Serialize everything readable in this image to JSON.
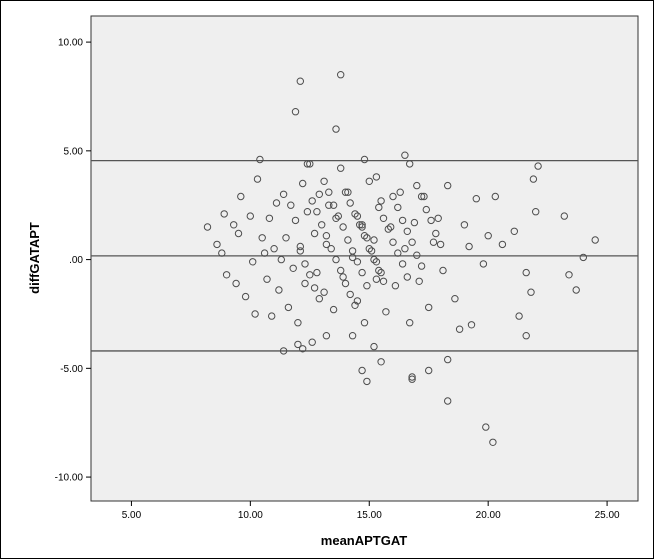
{
  "chart_data": {
    "type": "scatter",
    "xlabel": "meanAPTGAT",
    "ylabel": "diffGATAPT",
    "xlim": [
      3.3,
      26.3
    ],
    "ylim": [
      -11.1,
      11.2
    ],
    "x_ticks": [
      "5.00",
      "10.00",
      "15.00",
      "20.00",
      "25.00"
    ],
    "y_ticks": [
      "10.00",
      "5.00",
      ".00",
      "-5.00",
      "-10.00"
    ],
    "reference_lines": [
      4.55,
      0.17,
      -4.2
    ],
    "grid": false,
    "legend": "none",
    "colors": {
      "plot_background": "#efefef",
      "marker_edge": "#4d4d4d",
      "line": "#555555"
    },
    "points": [
      [
        8.2,
        1.5
      ],
      [
        8.6,
        0.7
      ],
      [
        8.8,
        0.3
      ],
      [
        8.9,
        2.1
      ],
      [
        9.0,
        -0.7
      ],
      [
        9.3,
        1.6
      ],
      [
        9.5,
        1.2
      ],
      [
        9.6,
        2.9
      ],
      [
        9.8,
        -1.7
      ],
      [
        10.0,
        2.0
      ],
      [
        10.1,
        -0.1
      ],
      [
        10.3,
        3.7
      ],
      [
        10.4,
        4.6
      ],
      [
        10.5,
        1.0
      ],
      [
        10.6,
        0.3
      ],
      [
        10.7,
        -0.9
      ],
      [
        10.8,
        1.9
      ],
      [
        10.9,
        -2.6
      ],
      [
        11.1,
        2.6
      ],
      [
        11.2,
        -1.4
      ],
      [
        11.3,
        0.0
      ],
      [
        11.4,
        3.0
      ],
      [
        11.5,
        1.0
      ],
      [
        11.6,
        -2.2
      ],
      [
        11.7,
        2.5
      ],
      [
        11.8,
        -0.4
      ],
      [
        11.9,
        1.8
      ],
      [
        12.0,
        -2.9
      ],
      [
        12.1,
        0.6
      ],
      [
        12.2,
        3.5
      ],
      [
        12.3,
        -1.1
      ],
      [
        12.4,
        2.2
      ],
      [
        12.5,
        4.4
      ],
      [
        12.6,
        -3.8
      ],
      [
        12.7,
        1.2
      ],
      [
        12.8,
        -0.6
      ],
      [
        12.9,
        3.0
      ],
      [
        13.1,
        -1.5
      ],
      [
        13.2,
        0.7
      ],
      [
        13.3,
        2.5
      ],
      [
        13.5,
        -2.3
      ],
      [
        13.6,
        1.9
      ],
      [
        13.8,
        4.2
      ],
      [
        13.9,
        -0.8
      ],
      [
        14.1,
        3.1
      ],
      [
        14.3,
        0.1
      ],
      [
        14.5,
        -1.9
      ],
      [
        14.7,
        1.6
      ],
      [
        14.8,
        -2.9
      ],
      [
        15.0,
        3.6
      ],
      [
        15.2,
        0.9
      ],
      [
        15.3,
        -0.9
      ],
      [
        15.5,
        2.7
      ],
      [
        15.7,
        -2.4
      ],
      [
        15.9,
        1.5
      ],
      [
        16.1,
        -1.2
      ],
      [
        16.3,
        3.1
      ],
      [
        16.5,
        0.5
      ],
      [
        16.7,
        -2.9
      ],
      [
        16.9,
        1.7
      ],
      [
        17.1,
        -1.0
      ],
      [
        17.3,
        2.9
      ],
      [
        17.5,
        -2.2
      ],
      [
        17.7,
        0.8
      ],
      [
        17.9,
        1.9
      ],
      [
        18.1,
        -0.5
      ],
      [
        18.3,
        3.4
      ],
      [
        18.6,
        -1.8
      ],
      [
        18.8,
        -3.2
      ],
      [
        19.0,
        1.6
      ],
      [
        19.2,
        0.6
      ],
      [
        19.5,
        2.8
      ],
      [
        19.8,
        -0.2
      ],
      [
        20.0,
        1.1
      ],
      [
        20.3,
        2.9
      ],
      [
        20.6,
        0.7
      ],
      [
        21.1,
        1.3
      ],
      [
        21.3,
        -2.6
      ],
      [
        21.6,
        -0.6
      ],
      [
        21.8,
        -1.5
      ],
      [
        22.0,
        2.2
      ],
      [
        22.1,
        4.3
      ],
      [
        23.2,
        2.0
      ],
      [
        23.4,
        -0.7
      ],
      [
        23.7,
        -1.4
      ],
      [
        24.0,
        0.1
      ],
      [
        24.5,
        0.9
      ],
      [
        9.4,
        -1.1
      ],
      [
        10.2,
        -2.5
      ],
      [
        11.0,
        0.5
      ],
      [
        11.4,
        -4.2
      ],
      [
        11.9,
        6.8
      ],
      [
        12.1,
        8.2
      ],
      [
        12.2,
        -4.1
      ],
      [
        13.8,
        8.5
      ],
      [
        13.6,
        6.0
      ],
      [
        12.4,
        4.4
      ],
      [
        14.8,
        4.6
      ],
      [
        15.3,
        3.8
      ],
      [
        16.5,
        4.8
      ],
      [
        16.7,
        4.4
      ],
      [
        12.0,
        -3.9
      ],
      [
        13.2,
        -3.5
      ],
      [
        14.3,
        -3.5
      ],
      [
        14.7,
        -5.1
      ],
      [
        14.9,
        -5.6
      ],
      [
        15.2,
        -4.0
      ],
      [
        15.5,
        -4.7
      ],
      [
        16.8,
        -5.4
      ],
      [
        16.8,
        -5.5
      ],
      [
        18.3,
        -4.6
      ],
      [
        18.3,
        -6.5
      ],
      [
        19.9,
        -7.7
      ],
      [
        20.2,
        -8.4
      ],
      [
        19.3,
        -3.0
      ],
      [
        21.6,
        -3.5
      ],
      [
        21.9,
        3.7
      ],
      [
        17.5,
        -5.1
      ],
      [
        12.1,
        0.4
      ],
      [
        12.3,
        -0.2
      ],
      [
        12.5,
        -0.7
      ],
      [
        12.7,
        -1.3
      ],
      [
        12.9,
        -1.8
      ],
      [
        12.6,
        2.7
      ],
      [
        12.8,
        2.2
      ],
      [
        13.0,
        1.6
      ],
      [
        13.2,
        1.1
      ],
      [
        13.4,
        0.5
      ],
      [
        13.6,
        0.0
      ],
      [
        13.8,
        -0.5
      ],
      [
        14.0,
        -1.1
      ],
      [
        14.2,
        -1.6
      ],
      [
        14.4,
        -2.1
      ],
      [
        13.1,
        3.6
      ],
      [
        13.3,
        3.1
      ],
      [
        13.5,
        2.5
      ],
      [
        13.7,
        2.0
      ],
      [
        13.9,
        1.5
      ],
      [
        14.1,
        0.9
      ],
      [
        14.3,
        0.4
      ],
      [
        14.5,
        -0.1
      ],
      [
        14.7,
        -0.6
      ],
      [
        14.9,
        -1.2
      ],
      [
        14.0,
        3.1
      ],
      [
        14.2,
        2.6
      ],
      [
        14.4,
        2.1
      ],
      [
        14.6,
        1.6
      ],
      [
        14.8,
        1.1
      ],
      [
        15.0,
        0.5
      ],
      [
        15.2,
        0.0
      ],
      [
        15.4,
        -0.5
      ],
      [
        15.6,
        -1.0
      ],
      [
        14.5,
        2.0
      ],
      [
        14.7,
        1.5
      ],
      [
        14.9,
        1.0
      ],
      [
        15.1,
        0.4
      ],
      [
        15.3,
        -0.1
      ],
      [
        15.5,
        -0.6
      ],
      [
        15.4,
        2.4
      ],
      [
        15.6,
        1.9
      ],
      [
        15.8,
        1.4
      ],
      [
        16.0,
        0.8
      ],
      [
        16.2,
        0.3
      ],
      [
        16.4,
        -0.2
      ],
      [
        16.6,
        -0.8
      ],
      [
        16.0,
        2.9
      ],
      [
        16.2,
        2.4
      ],
      [
        16.4,
        1.8
      ],
      [
        16.6,
        1.3
      ],
      [
        16.8,
        0.8
      ],
      [
        17.0,
        0.2
      ],
      [
        17.2,
        -0.3
      ],
      [
        17.0,
        3.4
      ],
      [
        17.2,
        2.9
      ],
      [
        17.4,
        2.3
      ],
      [
        17.6,
        1.8
      ],
      [
        17.8,
        1.2
      ],
      [
        18.0,
        0.7
      ]
    ]
  }
}
